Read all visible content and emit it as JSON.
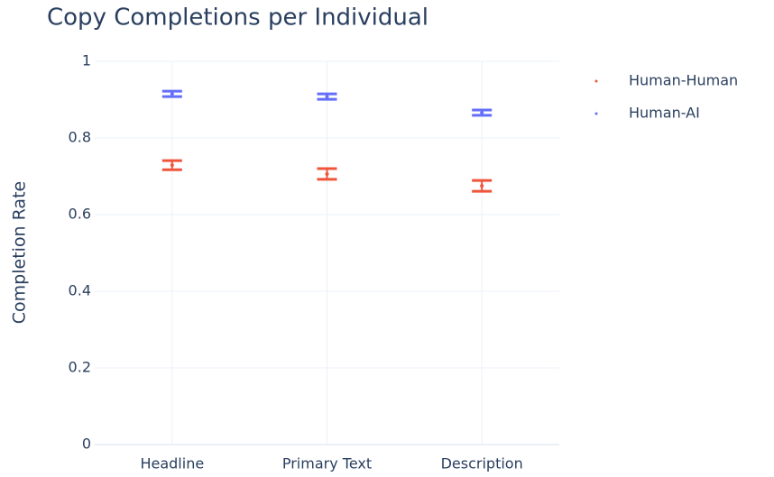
{
  "chart_data": {
    "type": "scatter",
    "title": "Copy Completions per Individual",
    "y_label": "Completion Rate",
    "categories": [
      "Headline",
      "Primary Text",
      "Description"
    ],
    "series": [
      {
        "name": "Human-Human",
        "color": "#EF553B",
        "values": [
          0.729,
          0.706,
          0.675
        ],
        "errors": [
          0.012,
          0.014,
          0.014
        ]
      },
      {
        "name": "Human-AI",
        "color": "#636EFA",
        "values": [
          0.915,
          0.908,
          0.866
        ],
        "errors": [
          0.007,
          0.007,
          0.007
        ]
      }
    ],
    "ylim": [
      0,
      1
    ],
    "yticks": [
      0,
      0.2,
      0.4,
      0.6,
      0.8,
      1
    ],
    "grid": true,
    "legend": "top-right"
  }
}
